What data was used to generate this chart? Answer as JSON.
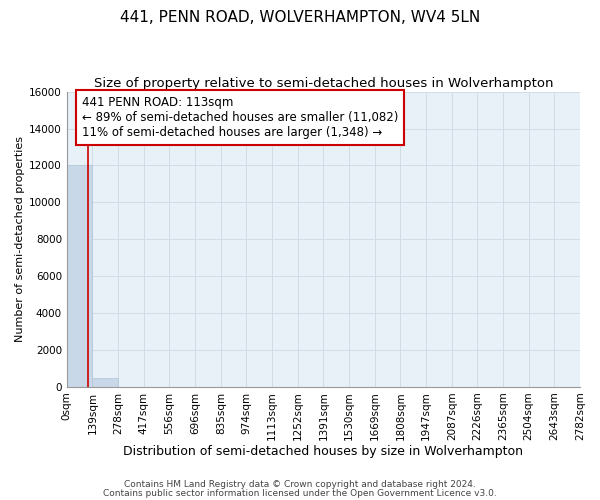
{
  "title": "441, PENN ROAD, WOLVERHAMPTON, WV4 5LN",
  "subtitle": "Size of property relative to semi-detached houses in Wolverhampton",
  "xlabel": "Distribution of semi-detached houses by size in Wolverhampton",
  "ylabel": "Number of semi-detached properties",
  "property_size": 113,
  "annotation_text_line1": "441 PENN ROAD: 113sqm",
  "annotation_text_line2": "← 89% of semi-detached houses are smaller (11,082)",
  "annotation_text_line3": "11% of semi-detached houses are larger (1,348) →",
  "footnote1": "Contains HM Land Registry data © Crown copyright and database right 2024.",
  "footnote2": "Contains public sector information licensed under the Open Government Licence v3.0.",
  "bin_edges": [
    0,
    139,
    278,
    417,
    556,
    696,
    835,
    974,
    1113,
    1252,
    1391,
    1530,
    1669,
    1808,
    1947,
    2087,
    2226,
    2365,
    2504,
    2643,
    2782
  ],
  "bin_counts": [
    12000,
    500,
    0,
    0,
    0,
    0,
    0,
    0,
    0,
    0,
    0,
    0,
    0,
    0,
    0,
    0,
    0,
    0,
    0,
    0
  ],
  "bar_color": "#c8d8e8",
  "bar_edge_color": "#b0c4d8",
  "grid_color": "#d0dce8",
  "ax_bg_color": "#e8f0f8",
  "annotation_box_color": "#ffffff",
  "annotation_box_edge": "#cc0000",
  "property_line_color": "#cc0000",
  "background_color": "#ffffff",
  "ylim": [
    0,
    16000
  ],
  "yticks": [
    0,
    2000,
    4000,
    6000,
    8000,
    10000,
    12000,
    14000,
    16000
  ],
  "title_fontsize": 11,
  "subtitle_fontsize": 9.5,
  "xlabel_fontsize": 9,
  "ylabel_fontsize": 8,
  "tick_fontsize": 7.5,
  "annotation_fontsize": 8.5,
  "footnote_fontsize": 6.5
}
